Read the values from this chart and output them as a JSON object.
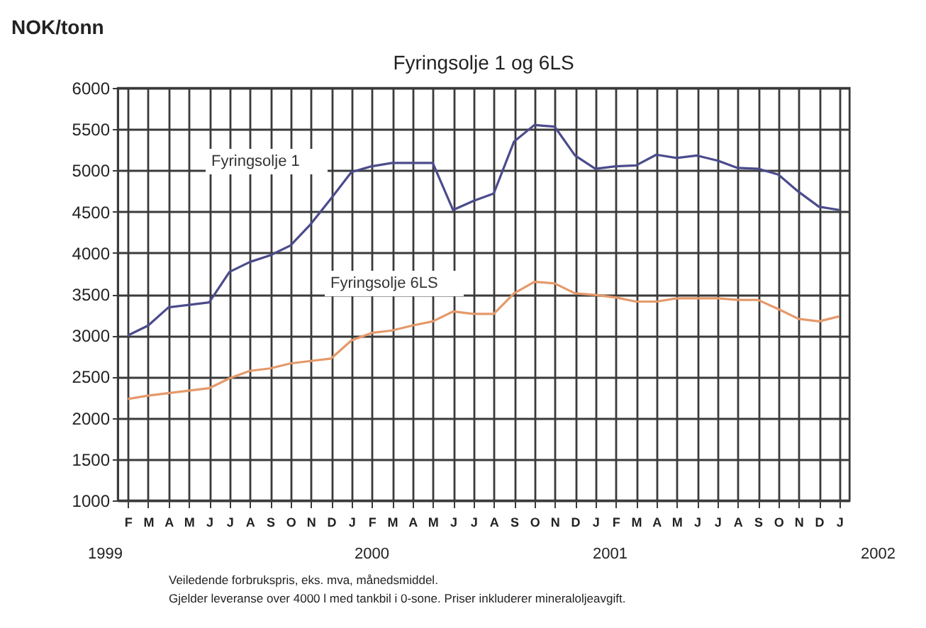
{
  "chart_data": {
    "type": "line",
    "title": "Fyringsolje 1 og 6LS",
    "ylabel": "NOK/tonn",
    "categories": [
      "F",
      "M",
      "A",
      "M",
      "J",
      "J",
      "A",
      "S",
      "O",
      "N",
      "D",
      "J",
      "F",
      "M",
      "A",
      "M",
      "J",
      "J",
      "A",
      "S",
      "O",
      "N",
      "D",
      "J",
      "F",
      "M",
      "A",
      "M",
      "J",
      "J",
      "A",
      "S",
      "O",
      "N",
      "D",
      "J"
    ],
    "series": [
      {
        "name": "Fyringsolje 1",
        "color": "#4b4b8c",
        "values": [
          3000,
          3120,
          3340,
          3370,
          3400,
          3770,
          3890,
          3970,
          4090,
          4350,
          4660,
          4980,
          5050,
          5090,
          5090,
          5090,
          4520,
          4630,
          4720,
          5350,
          5550,
          5530,
          5180,
          5020,
          5050,
          5060,
          5190,
          5150,
          5180,
          5120,
          5030,
          5020,
          4950,
          4740,
          4560,
          4520
        ]
      },
      {
        "name": "Fyringsolje 6LS",
        "color": "#e5996a",
        "values": [
          2230,
          2270,
          2300,
          2330,
          2360,
          2480,
          2570,
          2600,
          2660,
          2690,
          2720,
          2940,
          3030,
          3060,
          3120,
          3170,
          3290,
          3260,
          3260,
          3510,
          3650,
          3630,
          3510,
          3490,
          3460,
          3410,
          3410,
          3450,
          3450,
          3450,
          3430,
          3430,
          3320,
          3200,
          3170,
          3230
        ]
      }
    ],
    "ylim": [
      1000,
      6000
    ],
    "yticks": [
      1000,
      1500,
      2000,
      2500,
      3000,
      3500,
      4000,
      4500,
      5000,
      5500,
      6000
    ],
    "grid": true,
    "legend": false,
    "marker": "none",
    "line_style": "solid",
    "annotations": [
      "1999",
      "2000",
      "2001",
      "2002",
      "Veiledende forbrukspris, eks. mva, månedsmiddel.",
      "Gjelder leveranse over 4000 l med tankbil i 0-sone. Priser inkluderer mineraloljeavgift."
    ]
  }
}
